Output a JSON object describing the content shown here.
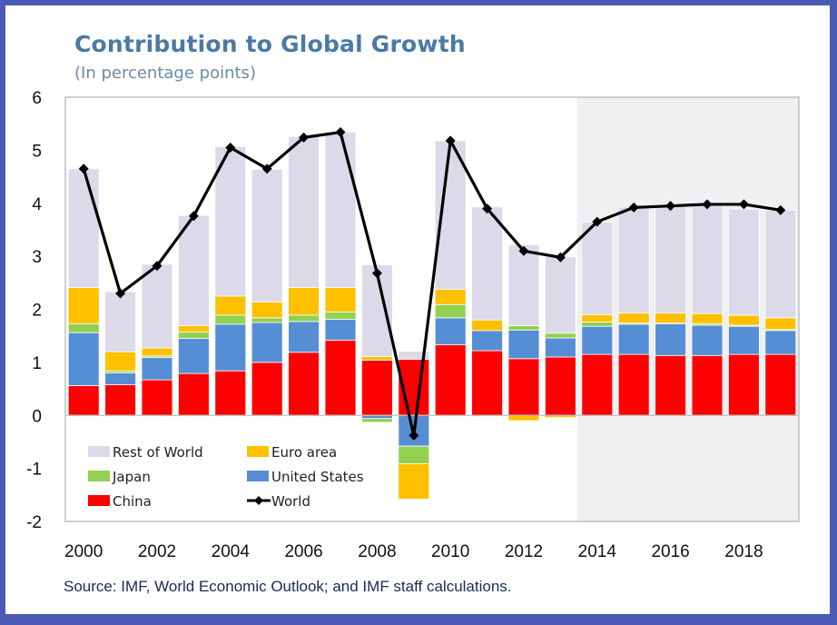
{
  "chart_data": {
    "type": "bar",
    "stacked": true,
    "title": "Contribution to Global Growth",
    "subtitle": "(In percentage points)",
    "xlabel": "",
    "ylabel": "",
    "ylim": [
      -2,
      6
    ],
    "yticks": [
      6,
      5,
      4,
      3,
      2,
      1,
      0,
      -1,
      -2
    ],
    "x": [
      2000,
      2001,
      2002,
      2003,
      2004,
      2005,
      2006,
      2007,
      2008,
      2009,
      2010,
      2011,
      2012,
      2013,
      2014,
      2015,
      2016,
      2017,
      2018,
      2019
    ],
    "xtick_labels": [
      "2000",
      "2002",
      "2004",
      "2006",
      "2008",
      "2010",
      "2012",
      "2014",
      "2016",
      "2018"
    ],
    "projection_shaded_from": 2014,
    "grid": false,
    "legend_position": "bottom-left",
    "series": [
      {
        "name": "China",
        "color": "#ff0000",
        "values": [
          0.56,
          0.58,
          0.67,
          0.79,
          0.84,
          1.0,
          1.19,
          1.42,
          1.04,
          1.06,
          1.33,
          1.22,
          1.07,
          1.1,
          1.15,
          1.15,
          1.13,
          1.13,
          1.15,
          1.15
        ]
      },
      {
        "name": "United States",
        "color": "#558ed5",
        "values": [
          1.0,
          0.22,
          0.42,
          0.66,
          0.88,
          0.75,
          0.58,
          0.39,
          -0.06,
          -0.58,
          0.51,
          0.38,
          0.54,
          0.36,
          0.53,
          0.57,
          0.6,
          0.57,
          0.53,
          0.45
        ]
      },
      {
        "name": "Japan",
        "color": "#92d050",
        "values": [
          0.17,
          0.04,
          0.03,
          0.12,
          0.17,
          0.09,
          0.12,
          0.14,
          -0.07,
          -0.33,
          0.25,
          0.0,
          0.08,
          0.09,
          0.08,
          0.02,
          0.01,
          0.03,
          0.02,
          0.02
        ]
      },
      {
        "name": "Euro area",
        "color": "#ffc000",
        "values": [
          0.68,
          0.36,
          0.15,
          0.12,
          0.36,
          0.3,
          0.52,
          0.46,
          0.07,
          -0.67,
          0.29,
          0.2,
          -0.1,
          -0.04,
          0.14,
          0.19,
          0.19,
          0.19,
          0.19,
          0.22
        ]
      },
      {
        "name": "Rest of World",
        "color": "#dcdae9",
        "values": [
          2.24,
          1.13,
          1.58,
          2.08,
          2.82,
          2.5,
          2.85,
          2.93,
          1.73,
          0.15,
          2.8,
          2.13,
          1.53,
          1.44,
          1.75,
          2.0,
          2.02,
          2.05,
          2.0,
          2.03
        ]
      }
    ],
    "line": {
      "name": "World",
      "color": "#000000",
      "marker": "diamond",
      "values": [
        4.65,
        2.3,
        2.82,
        3.76,
        5.05,
        4.65,
        5.24,
        5.34,
        2.68,
        -0.38,
        5.18,
        3.9,
        3.1,
        2.98,
        3.65,
        3.92,
        3.95,
        3.98,
        3.98,
        3.87
      ]
    },
    "legend": [
      {
        "name": "Rest of World",
        "kind": "bar"
      },
      {
        "name": "Euro area",
        "kind": "bar"
      },
      {
        "name": "Japan",
        "kind": "bar"
      },
      {
        "name": "United States",
        "kind": "bar"
      },
      {
        "name": "China",
        "kind": "bar"
      },
      {
        "name": "World",
        "kind": "line"
      }
    ]
  },
  "source": "Source: IMF, World Economic Outlook; and IMF staff calculations."
}
